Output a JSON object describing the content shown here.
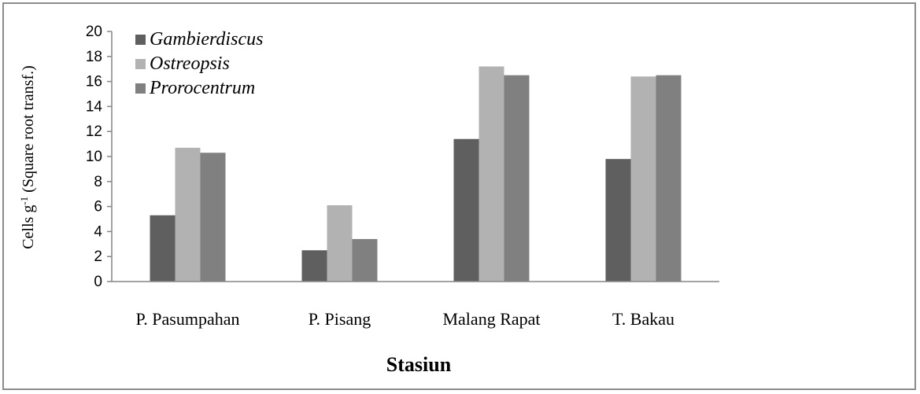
{
  "chart_data": {
    "type": "bar",
    "categories": [
      "P. Pasumpahan",
      "P. Pisang",
      "Malang Rapat",
      "T. Bakau"
    ],
    "series": [
      {
        "name": "Gambierdiscus",
        "color": "#5f5f5f",
        "values": [
          5.3,
          2.5,
          11.4,
          9.8
        ]
      },
      {
        "name": "Ostreopsis",
        "color": "#b2b2b2",
        "values": [
          10.7,
          6.1,
          17.2,
          16.4
        ]
      },
      {
        "name": "Prorocentrum",
        "color": "#808080",
        "values": [
          10.3,
          3.4,
          16.5,
          16.5
        ]
      }
    ],
    "xlabel": "Stasiun",
    "ylabel": "Cells  g",
    "ylabel_superscript": "-1",
    "ylabel_suffix": " (Square root transf.)",
    "ylim": [
      0,
      20
    ],
    "yticks": [
      0,
      2,
      4,
      6,
      8,
      10,
      12,
      14,
      16,
      18,
      20
    ],
    "grid": false,
    "legend_position": "top-left"
  }
}
